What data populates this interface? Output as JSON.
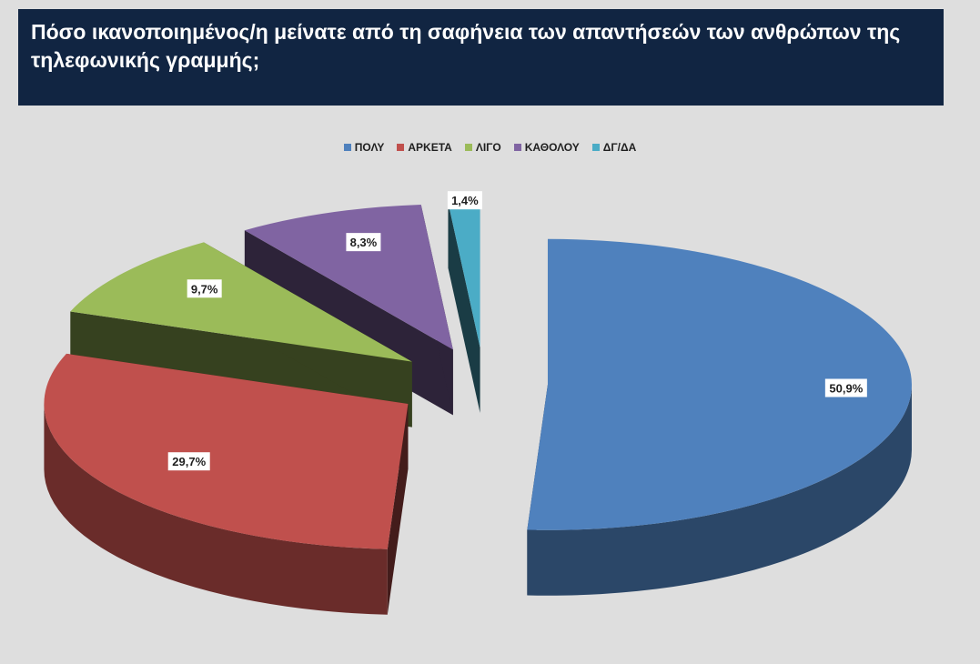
{
  "header": {
    "title": "Πόσο ικανοποιημένος/η μείνατε από τη σαφήνεια των απαντήσεών των ανθρώπων της τηλεφωνικής γραμμής;"
  },
  "chart_data": {
    "type": "pie",
    "title": "Πόσο ικανοποιημένος/η μείνατε από τη σαφήνεια των απαντήσεών των ανθρώπων της τηλεφωνικής γραμμής;",
    "style": "3d-exploded",
    "legend_position": "top",
    "categories": [
      "ΠΟΛΥ",
      "ΑΡΚΕΤΑ",
      "ΛΙΓΟ",
      "ΚΑΘΟΛΟΥ",
      "ΔΓ/ΔΑ"
    ],
    "values": [
      50.9,
      29.7,
      9.7,
      8.3,
      1.4
    ],
    "labels": [
      "50,9%",
      "29,7%",
      "9,7%",
      "8,3%",
      "1,4%"
    ],
    "colors": [
      "#4f81bd",
      "#c0504d",
      "#9bbb59",
      "#8064a2",
      "#4bacc6"
    ]
  }
}
